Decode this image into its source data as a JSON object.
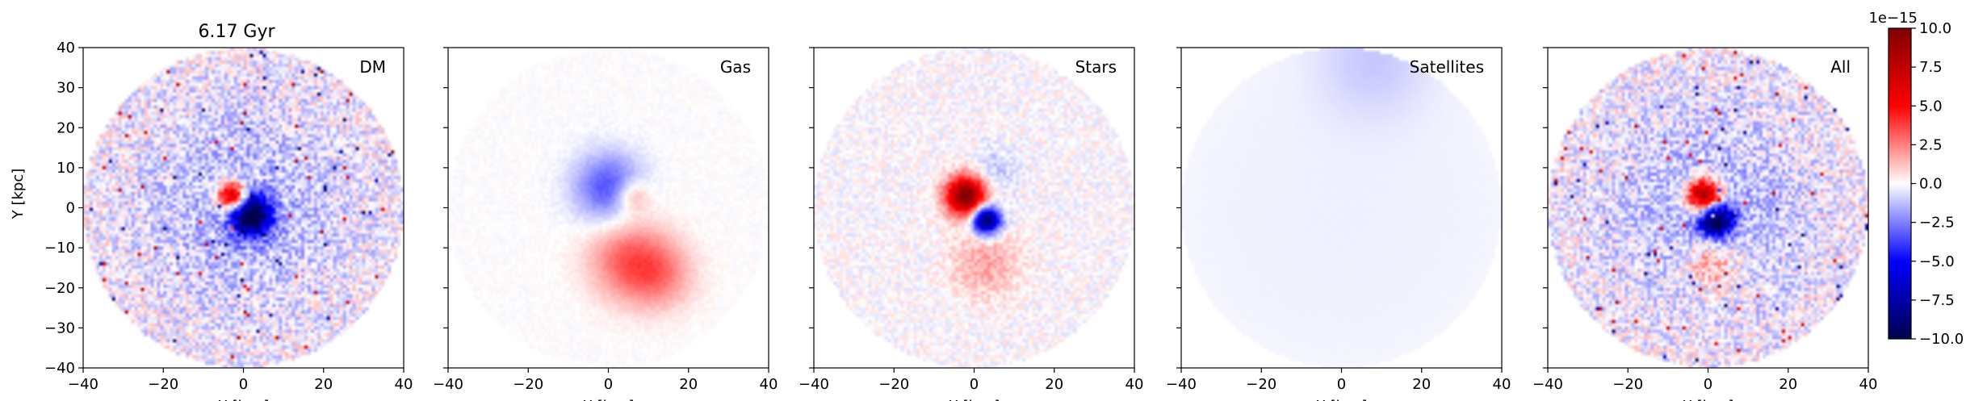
{
  "figure": {
    "title": "6.17 Gyr",
    "xlabel": "X [kpc]",
    "ylabel": "Y [kpc]"
  },
  "chart_data": {
    "type": "heatmap",
    "xlim": [
      -40,
      40
    ],
    "ylim": [
      -40,
      40
    ],
    "ticks": [
      -40,
      -20,
      0,
      20,
      40
    ],
    "tick_labels": [
      "−40",
      "−20",
      "0",
      "20",
      "40"
    ],
    "y_tick_values": [
      -40,
      -30,
      -20,
      -10,
      0,
      10,
      20,
      30,
      40
    ],
    "y_tick_labels": [
      "−40",
      "−30",
      "−20",
      "−10",
      "0",
      "10",
      "20",
      "30",
      "40"
    ],
    "disk_radius_kpc": 40,
    "colormap": "seismic",
    "panels": [
      {
        "label": "DM",
        "features": [
          {
            "x": -3,
            "y": 3,
            "amp": 9,
            "sigma": 2.5
          },
          {
            "x": 2,
            "y": -2,
            "amp": -10,
            "sigma": 3.5
          },
          {
            "x": 0,
            "y": 0,
            "amp": -1.5,
            "sigma": 18
          }
        ],
        "noise": 1.6
      },
      {
        "label": "Gas",
        "features": [
          {
            "x": 0,
            "y": 5,
            "amp": -3.5,
            "sigma": 6
          },
          {
            "x": 5,
            "y": -13,
            "amp": 3,
            "sigma": 7
          },
          {
            "x": 13,
            "y": -17,
            "amp": 2,
            "sigma": 6
          },
          {
            "x": 6,
            "y": 3,
            "amp": 2.5,
            "sigma": 3
          }
        ],
        "noise": 0.2
      },
      {
        "label": "Stars",
        "features": [
          {
            "x": -2,
            "y": 3,
            "amp": 10,
            "sigma": 3.5
          },
          {
            "x": 3,
            "y": -3,
            "amp": -10,
            "sigma": 2.5
          },
          {
            "x": 3,
            "y": -14,
            "amp": 1.8,
            "sigma": 6
          },
          {
            "x": 5,
            "y": 9,
            "amp": -1.2,
            "sigma": 4
          }
        ],
        "noise": 0.7
      },
      {
        "label": "Satellites",
        "features": [
          {
            "x": 8,
            "y": 37,
            "amp": -0.9,
            "sigma": 10
          },
          {
            "x": 0,
            "y": 0,
            "amp": -0.3,
            "sigma": 40
          }
        ],
        "noise": 0.02
      },
      {
        "label": "All",
        "features": [
          {
            "x": -1,
            "y": 3,
            "amp": 10,
            "sigma": 3
          },
          {
            "x": 2,
            "y": -3,
            "amp": -10,
            "sigma": 3
          },
          {
            "x": 1,
            "y": -14,
            "amp": 2.5,
            "sigma": 5
          },
          {
            "x": 0,
            "y": 0,
            "amp": -1.5,
            "sigma": 18
          }
        ],
        "noise": 1.6
      }
    ],
    "colorbar": {
      "range": [
        -10.0,
        10.0
      ],
      "ticks": [
        10.0,
        7.5,
        5.0,
        2.5,
        0.0,
        -2.5,
        -5.0,
        -7.5,
        -10.0
      ],
      "tick_labels": [
        "10.0",
        "7.5",
        "5.0",
        "2.5",
        "0.0",
        "−2.5",
        "−5.0",
        "−7.5",
        "−10.0"
      ],
      "scale_label": "1e−15"
    }
  }
}
